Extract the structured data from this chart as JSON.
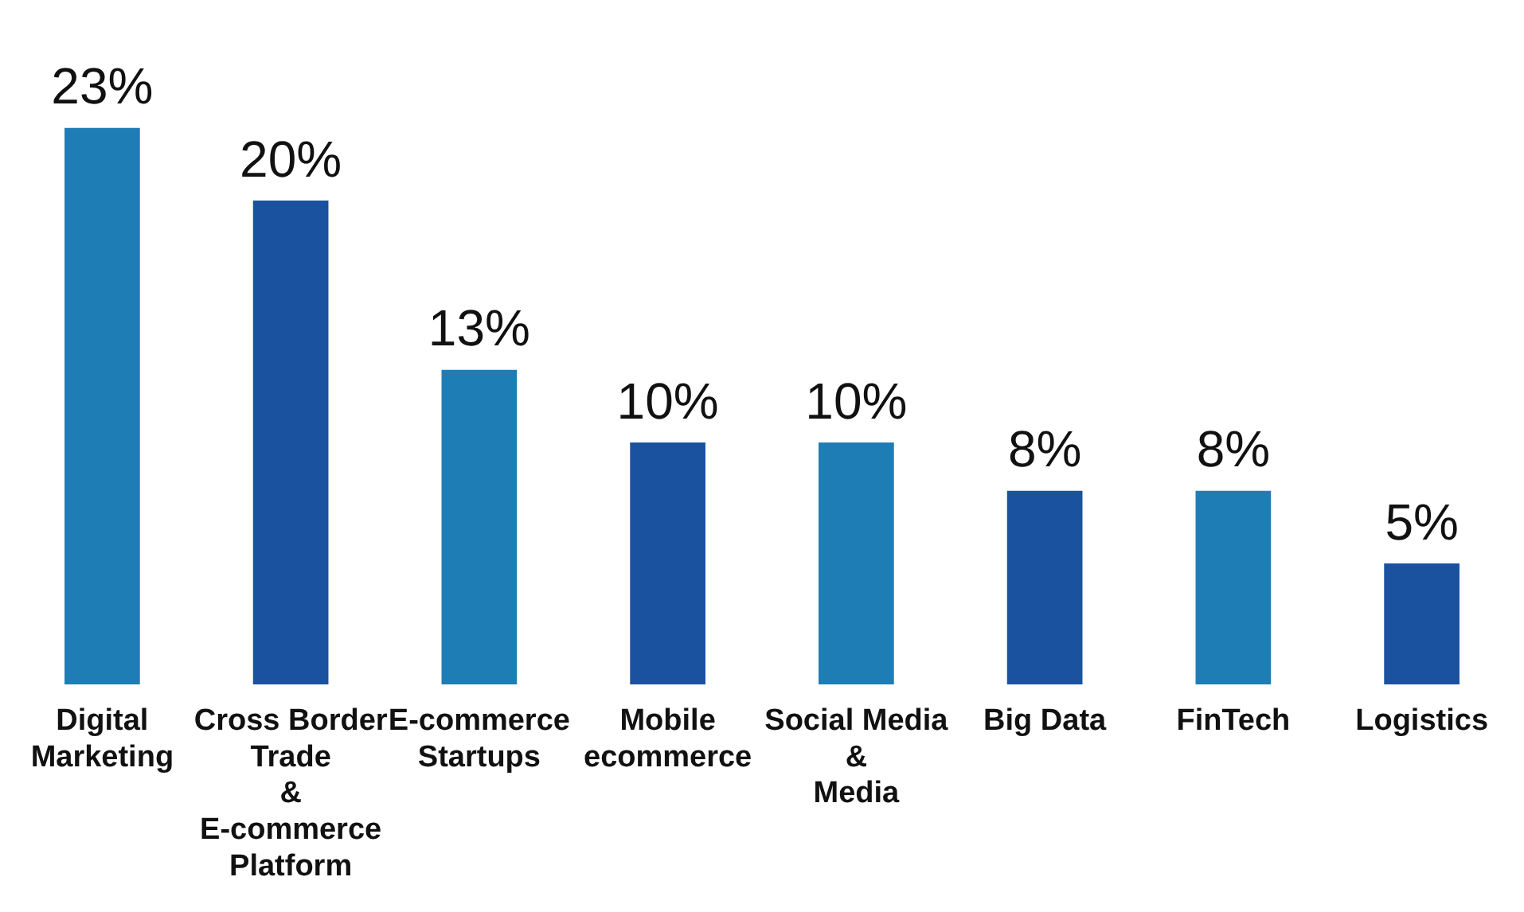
{
  "chart_data": {
    "type": "bar",
    "categories": [
      "Digital\nMarketing",
      "Cross Border\nTrade\n&\nE-commerce\nPlatform",
      "E-commerce\nStartups",
      "Mobile\necommerce",
      "Social Media\n&\nMedia",
      "Big Data",
      "FinTech",
      "Logistics"
    ],
    "values": [
      23,
      20,
      13,
      10,
      10,
      8,
      8,
      5
    ],
    "colors": [
      "#1f7db5",
      "#1a52a0",
      "#1f7db5",
      "#1a52a0",
      "#1f7db5",
      "#1a52a0",
      "#1f7db5",
      "#1a52a0"
    ],
    "value_labels": [
      "23%",
      "20%",
      "13%",
      "10%",
      "10%",
      "8%",
      "8%",
      "5%"
    ],
    "grid": false,
    "legend": false
  }
}
